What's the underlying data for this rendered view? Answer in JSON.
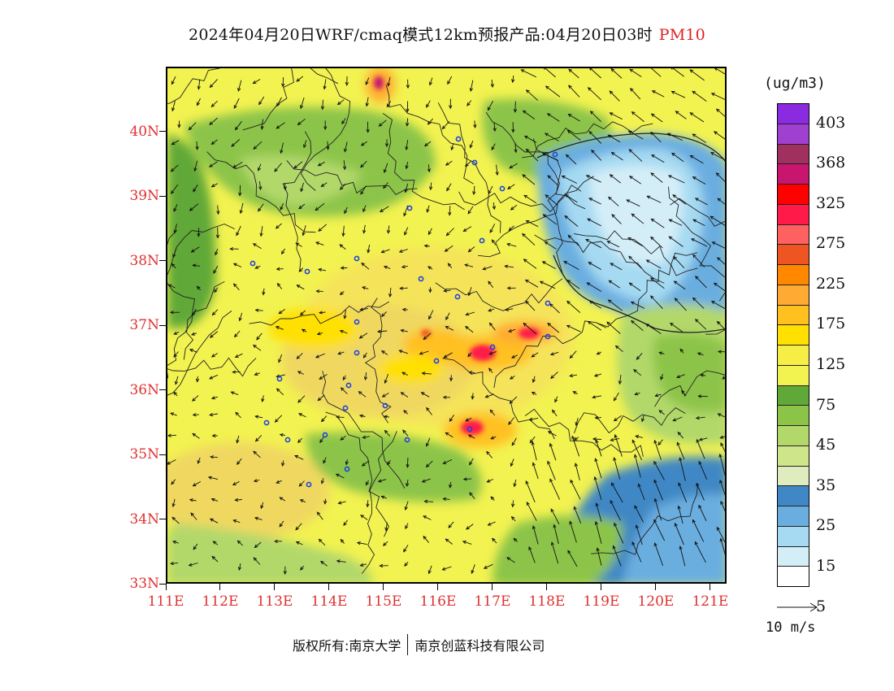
{
  "title": {
    "text": "2024年04月20日WRF/cmaq模式12km预报产品:04月20日03时",
    "variable": "PM10"
  },
  "map": {
    "lat_labels": [
      "40N",
      "39N",
      "38N",
      "37N",
      "36N",
      "35N",
      "34N",
      "33N"
    ],
    "lon_labels": [
      "111E",
      "112E",
      "113E",
      "114E",
      "115E",
      "116E",
      "117E",
      "118E",
      "119E",
      "120E",
      "121E"
    ],
    "lat_range": [
      33,
      41
    ],
    "lon_range": [
      111,
      121.3
    ]
  },
  "legend": {
    "unit": "(ug/m3)",
    "colors": [
      "#8a2be2",
      "#a040d0",
      "#a03060",
      "#c8156e",
      "#ff0000",
      "#ff1a4a",
      "#ff6060",
      "#ee5522",
      "#ff8800",
      "#ffaa33",
      "#ffc020",
      "#ffe000",
      "#f6ee44",
      "#f2f250",
      "#60a838",
      "#8cc448",
      "#b2d86a",
      "#cfe58a",
      "#dfecbd",
      "#3f88c5",
      "#6aaee0",
      "#a6daf2",
      "#d4eef8",
      "#ffffff"
    ],
    "labels": [
      {
        "text": "403",
        "boundary": 1
      },
      {
        "text": "368",
        "boundary": 3
      },
      {
        "text": "325",
        "boundary": 5
      },
      {
        "text": "275",
        "boundary": 7
      },
      {
        "text": "225",
        "boundary": 9
      },
      {
        "text": "175",
        "boundary": 11
      },
      {
        "text": "125",
        "boundary": 13
      },
      {
        "text": "75",
        "boundary": 15
      },
      {
        "text": "45",
        "boundary": 17
      },
      {
        "text": "35",
        "boundary": 19
      },
      {
        "text": "25",
        "boundary": 21
      },
      {
        "text": "15",
        "boundary": 23
      },
      {
        "text": "5",
        "boundary": 25
      }
    ]
  },
  "wind_reference": {
    "label": "10 m/s"
  },
  "footer": {
    "copyright": "版权所有:南京大学",
    "company": "南京创蓝科技有限公司"
  }
}
